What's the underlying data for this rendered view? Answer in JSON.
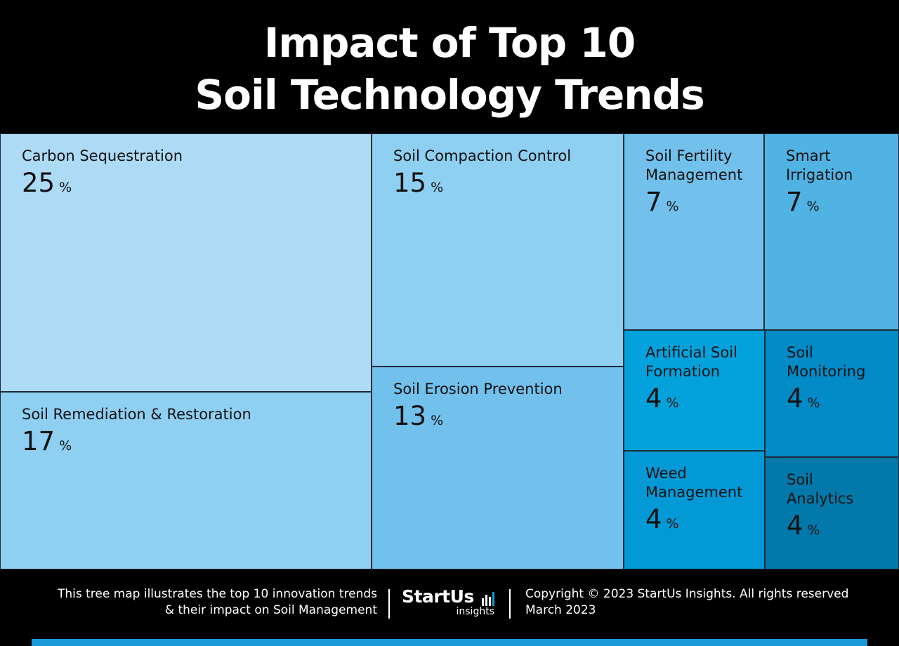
{
  "title": {
    "line1": "Impact of Top 10",
    "line2": "Soil Technology Trends"
  },
  "chart_data": {
    "type": "treemap",
    "unit": "%",
    "items": [
      {
        "label": "Carbon Sequestration",
        "value": 25,
        "color": "#addbf6"
      },
      {
        "label": "Soil Remediation & Restoration",
        "value": 17,
        "color": "#8ecff2"
      },
      {
        "label": "Soil Compaction Control",
        "value": 15,
        "color": "#8ecff2"
      },
      {
        "label": "Soil Erosion Prevention",
        "value": 13,
        "color": "#71c1ec"
      },
      {
        "label": "Soil Fertility\nManagement",
        "value": 7,
        "color": "#71c1ec"
      },
      {
        "label": "Smart\nIrrigation",
        "value": 7,
        "color": "#51b2e4"
      },
      {
        "label": "Artificial Soil\nFormation",
        "value": 4,
        "color": "#03a2dd"
      },
      {
        "label": "Soil\nMonitoring",
        "value": 4,
        "color": "#028bc6"
      },
      {
        "label": "Weed\nManagement",
        "value": 4,
        "color": "#0299d6"
      },
      {
        "label": "Soil\nAnalytics",
        "value": 4,
        "color": "#0279aa"
      }
    ]
  },
  "footer": {
    "description_line1": "This tree map illustrates the top 10 innovation trends",
    "description_line2": "& their impact on Soil Management",
    "logo_name": "StartUs",
    "logo_sub": "insights",
    "copyright": "Copyright © 2023 StartUs Insights. All rights reserved",
    "date": "March 2023"
  },
  "colors": {
    "background": "#000000",
    "accent": "#1a9ad8",
    "text_light": "#ffffff",
    "text_dark": "#111111"
  }
}
